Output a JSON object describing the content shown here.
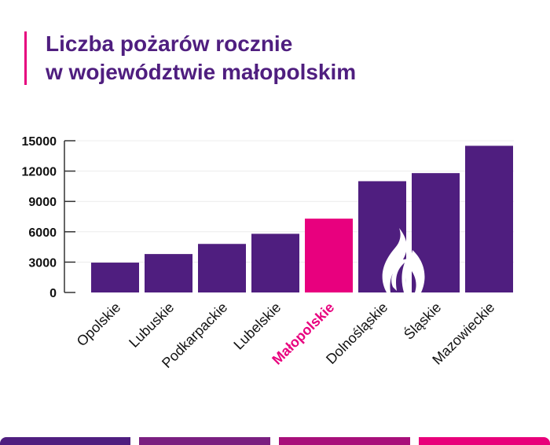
{
  "title_line1": "Liczba pożarów rocznie",
  "title_line2": "w województwie małopolskim",
  "colors": {
    "bar": "#4f1e7f",
    "highlight": "#e8007e",
    "grid": "#ececec",
    "footer": [
      "#4f1e7f",
      "#7a1f80",
      "#a80f7a",
      "#e8007a"
    ]
  },
  "chart_data": {
    "type": "bar",
    "title": "Liczba pożarów rocznie w województwie małopolskim",
    "xlabel": "",
    "ylabel": "",
    "categories": [
      "Opolskie",
      "Lubuskie",
      "Podkarpackie",
      "Lubelskie",
      "Małopolskie",
      "Dolnośląskie",
      "Śląskie",
      "Mazowieckie"
    ],
    "values": [
      2950,
      3800,
      4800,
      5800,
      7300,
      11000,
      11800,
      14500
    ],
    "highlight": "Małopolskie",
    "ylim": [
      0,
      15000
    ],
    "yticks": [
      "0",
      "3000",
      "6000",
      "9000",
      "12000",
      "15000"
    ],
    "grid": true,
    "icon": "flame-icon"
  }
}
